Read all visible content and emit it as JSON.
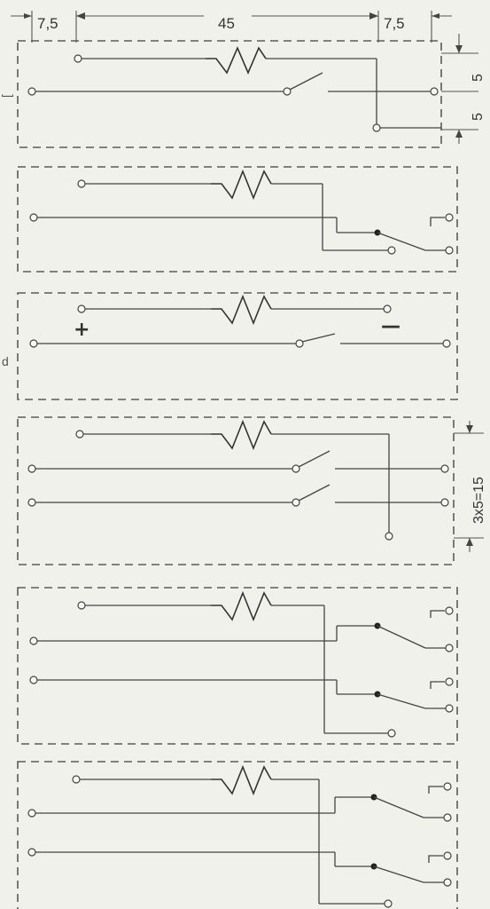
{
  "dimensions": {
    "left_margin": "7,5",
    "body_width": "45",
    "right_margin": "7,5",
    "pitch_upper": "5",
    "pitch_lower": "5",
    "pitch_total": "3x5=15"
  },
  "polarity": {
    "plus": "+",
    "minus": "—"
  },
  "side_mark": "d",
  "colors": {
    "line": "#444444",
    "frame": "#5a5a5a",
    "paper": "#f1f1ec"
  },
  "diagrams": [
    {
      "id": "relay-1",
      "type": "normally-open-single"
    },
    {
      "id": "relay-2",
      "type": "changeover-single"
    },
    {
      "id": "relay-3",
      "type": "polarized-normally-open"
    },
    {
      "id": "relay-4",
      "type": "normally-open-double"
    },
    {
      "id": "relay-5",
      "type": "changeover-double"
    },
    {
      "id": "relay-6",
      "type": "changeover-double"
    }
  ]
}
